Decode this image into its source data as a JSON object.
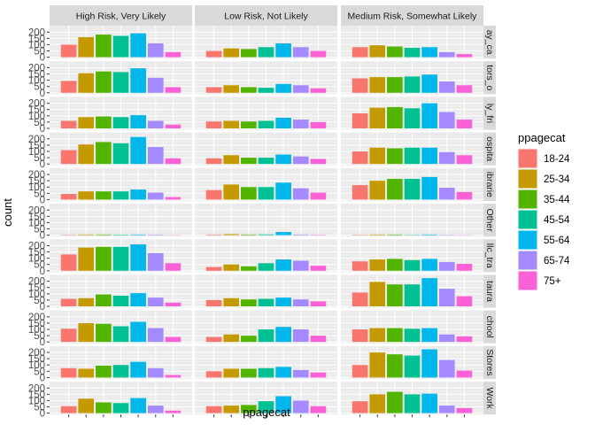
{
  "chart_data": {
    "type": "bar",
    "facet": "grid",
    "column_facets": [
      "High Risk, Very Likely",
      "Low Risk, Not Likely",
      "Medium Risk, Somewhat Likely"
    ],
    "row_facets": [
      "ay_ca",
      "tors_o",
      "ly_fri",
      "ospita",
      "ibrarie",
      "Other",
      "llc_tra",
      "taura",
      "chool",
      "Stores",
      "Work"
    ],
    "categories": [
      "18-24",
      "25-34",
      "35-44",
      "45-54",
      "55-64",
      "65-74",
      "75+"
    ],
    "x_tick_labels": [
      "",
      "",
      "",
      "",
      "",
      "",
      ""
    ],
    "xlabel": "ppagecat",
    "ylabel": "count",
    "yticks": [
      0,
      50,
      100,
      150,
      200
    ],
    "ylim": [
      0,
      230
    ],
    "legend": {
      "title": "ppagecat",
      "placement": "right",
      "items": [
        "18-24",
        "25-34",
        "35-44",
        "45-54",
        "55-64",
        "65-74",
        "75+"
      ]
    },
    "colors": [
      "#F8766D",
      "#C49A00",
      "#53B400",
      "#00C094",
      "#00B6EB",
      "#A58AFF",
      "#FB61D7"
    ],
    "panel_background": "#EBEBEB",
    "strip_background": "#D9D9D9",
    "grid": true,
    "values": [
      [
        [
          100,
          160,
          180,
          170,
          190,
          110,
          40
        ],
        [
          50,
          70,
          65,
          80,
          110,
          80,
          50
        ],
        [
          80,
          95,
          85,
          75,
          80,
          40,
          25
        ]
      ],
      [
        [
          95,
          155,
          170,
          165,
          195,
          120,
          45
        ],
        [
          45,
          60,
          45,
          40,
          70,
          60,
          35
        ],
        [
          115,
          125,
          125,
          130,
          145,
          90,
          60
        ]
      ],
      [
        [
          60,
          90,
          95,
          90,
          105,
          60,
          30
        ],
        [
          55,
          60,
          55,
          60,
          85,
          70,
          50
        ],
        [
          120,
          165,
          170,
          160,
          200,
          130,
          70
        ]
      ],
      [
        [
          110,
          155,
          175,
          165,
          215,
          135,
          45
        ],
        [
          45,
          70,
          50,
          50,
          75,
          60,
          40
        ],
        [
          100,
          130,
          125,
          130,
          130,
          95,
          70
        ]
      ],
      [
        [
          45,
          65,
          65,
          65,
          80,
          55,
          20
        ],
        [
          75,
          120,
          100,
          100,
          135,
          90,
          55
        ],
        [
          115,
          150,
          165,
          165,
          180,
          95,
          60
        ]
      ],
      [
        [
          3,
          5,
          5,
          4,
          5,
          4,
          2
        ],
        [
          5,
          8,
          5,
          6,
          25,
          5,
          3
        ],
        [
          3,
          5,
          5,
          3,
          5,
          3,
          2
        ]
      ],
      [
        [
          130,
          185,
          190,
          190,
          210,
          140,
          60
        ],
        [
          30,
          50,
          35,
          60,
          90,
          80,
          40
        ],
        [
          75,
          90,
          95,
          85,
          95,
          70,
          55
        ]
      ],
      [
        [
          60,
          65,
          95,
          85,
          105,
          70,
          30
        ],
        [
          50,
          65,
          55,
          60,
          70,
          55,
          40
        ],
        [
          110,
          195,
          175,
          175,
          225,
          140,
          80
        ]
      ],
      [
        [
          105,
          150,
          145,
          125,
          160,
          110,
          40
        ],
        [
          40,
          60,
          50,
          100,
          120,
          100,
          50
        ],
        [
          100,
          110,
          110,
          105,
          110,
          60,
          45
        ]
      ],
      [
        [
          75,
          70,
          95,
          100,
          125,
          75,
          20
        ],
        [
          50,
          70,
          70,
          75,
          85,
          60,
          40
        ],
        [
          100,
          200,
          185,
          175,
          225,
          140,
          55
        ]
      ],
      [
        [
          55,
          115,
          85,
          80,
          120,
          60,
          20
        ],
        [
          55,
          60,
          65,
          95,
          135,
          100,
          55
        ],
        [
          95,
          150,
          170,
          150,
          155,
          60,
          40
        ]
      ]
    ]
  }
}
